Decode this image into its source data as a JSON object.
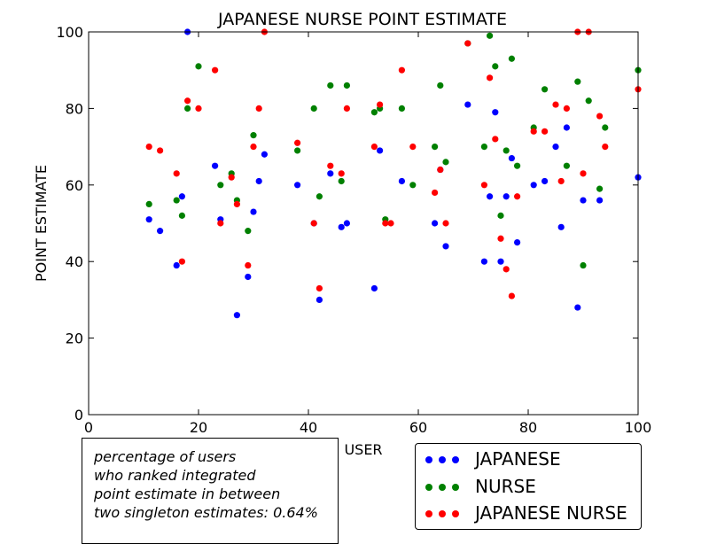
{
  "chart_data": {
    "type": "scatter",
    "title": "JAPANESE NURSE POINT ESTIMATE",
    "xlabel": "USER",
    "ylabel": "POINT ESTIMATE",
    "xlim": [
      0,
      100
    ],
    "ylim": [
      0,
      100
    ],
    "xticks": [
      "0",
      "20",
      "40",
      "60",
      "80",
      "100"
    ],
    "yticks": [
      "0",
      "20",
      "40",
      "60",
      "80",
      "100"
    ],
    "grid": false,
    "legend_position": "bottom-right, below axes",
    "series": [
      {
        "name": "JAPANESE",
        "color": "#0000ff",
        "points": [
          [
            11,
            51
          ],
          [
            13,
            48
          ],
          [
            16,
            39
          ],
          [
            17,
            57
          ],
          [
            18,
            100
          ],
          [
            23,
            65
          ],
          [
            24,
            51
          ],
          [
            27,
            26
          ],
          [
            29,
            36
          ],
          [
            30,
            53
          ],
          [
            31,
            61
          ],
          [
            32,
            68
          ],
          [
            38,
            60
          ],
          [
            41,
            50
          ],
          [
            42,
            30
          ],
          [
            44,
            63
          ],
          [
            46,
            49
          ],
          [
            47,
            50
          ],
          [
            52,
            33
          ],
          [
            53,
            69
          ],
          [
            57,
            61
          ],
          [
            63,
            50
          ],
          [
            64,
            64
          ],
          [
            65,
            44
          ],
          [
            69,
            81
          ],
          [
            72,
            40
          ],
          [
            73,
            57
          ],
          [
            74,
            79
          ],
          [
            75,
            40
          ],
          [
            76,
            57
          ],
          [
            77,
            67
          ],
          [
            78,
            45
          ],
          [
            81,
            60
          ],
          [
            83,
            61
          ],
          [
            85,
            70
          ],
          [
            86,
            49
          ],
          [
            87,
            75
          ],
          [
            89,
            28
          ],
          [
            90,
            56
          ],
          [
            93,
            56
          ],
          [
            100,
            62
          ]
        ]
      },
      {
        "name": "NURSE",
        "color": "#008000",
        "points": [
          [
            11,
            55
          ],
          [
            16,
            56
          ],
          [
            17,
            52
          ],
          [
            18,
            80
          ],
          [
            20,
            91
          ],
          [
            24,
            60
          ],
          [
            26,
            63
          ],
          [
            27,
            56
          ],
          [
            29,
            48
          ],
          [
            30,
            73
          ],
          [
            38,
            69
          ],
          [
            41,
            80
          ],
          [
            42,
            57
          ],
          [
            44,
            86
          ],
          [
            46,
            61
          ],
          [
            47,
            86
          ],
          [
            52,
            79
          ],
          [
            53,
            80
          ],
          [
            54,
            51
          ],
          [
            57,
            80
          ],
          [
            59,
            60
          ],
          [
            63,
            70
          ],
          [
            64,
            86
          ],
          [
            65,
            66
          ],
          [
            69,
            97
          ],
          [
            72,
            70
          ],
          [
            73,
            99
          ],
          [
            74,
            91
          ],
          [
            75,
            52
          ],
          [
            76,
            69
          ],
          [
            77,
            93
          ],
          [
            78,
            65
          ],
          [
            81,
            75
          ],
          [
            83,
            85
          ],
          [
            87,
            65
          ],
          [
            89,
            87
          ],
          [
            90,
            39
          ],
          [
            91,
            82
          ],
          [
            93,
            59
          ],
          [
            94,
            75
          ],
          [
            100,
            90
          ]
        ]
      },
      {
        "name": "JAPANESE NURSE",
        "color": "#ff0000",
        "points": [
          [
            11,
            70
          ],
          [
            13,
            69
          ],
          [
            16,
            63
          ],
          [
            17,
            40
          ],
          [
            18,
            82
          ],
          [
            20,
            80
          ],
          [
            23,
            90
          ],
          [
            24,
            50
          ],
          [
            26,
            62
          ],
          [
            27,
            55
          ],
          [
            29,
            39
          ],
          [
            30,
            70
          ],
          [
            31,
            80
          ],
          [
            32,
            100
          ],
          [
            38,
            71
          ],
          [
            41,
            50
          ],
          [
            42,
            33
          ],
          [
            44,
            65
          ],
          [
            46,
            63
          ],
          [
            47,
            80
          ],
          [
            52,
            70
          ],
          [
            53,
            81
          ],
          [
            54,
            50
          ],
          [
            55,
            50
          ],
          [
            57,
            90
          ],
          [
            59,
            70
          ],
          [
            63,
            58
          ],
          [
            64,
            64
          ],
          [
            65,
            50
          ],
          [
            69,
            97
          ],
          [
            72,
            60
          ],
          [
            73,
            88
          ],
          [
            74,
            72
          ],
          [
            75,
            46
          ],
          [
            76,
            38
          ],
          [
            77,
            31
          ],
          [
            78,
            57
          ],
          [
            81,
            74
          ],
          [
            83,
            74
          ],
          [
            85,
            81
          ],
          [
            86,
            61
          ],
          [
            87,
            80
          ],
          [
            89,
            100
          ],
          [
            90,
            63
          ],
          [
            91,
            100
          ],
          [
            93,
            78
          ],
          [
            94,
            70
          ],
          [
            100,
            85
          ]
        ]
      }
    ]
  },
  "annotation": {
    "lines": [
      "percentage of users",
      "who ranked integrated",
      "point estimate in between",
      "two singleton estimates: 0.64%"
    ]
  }
}
